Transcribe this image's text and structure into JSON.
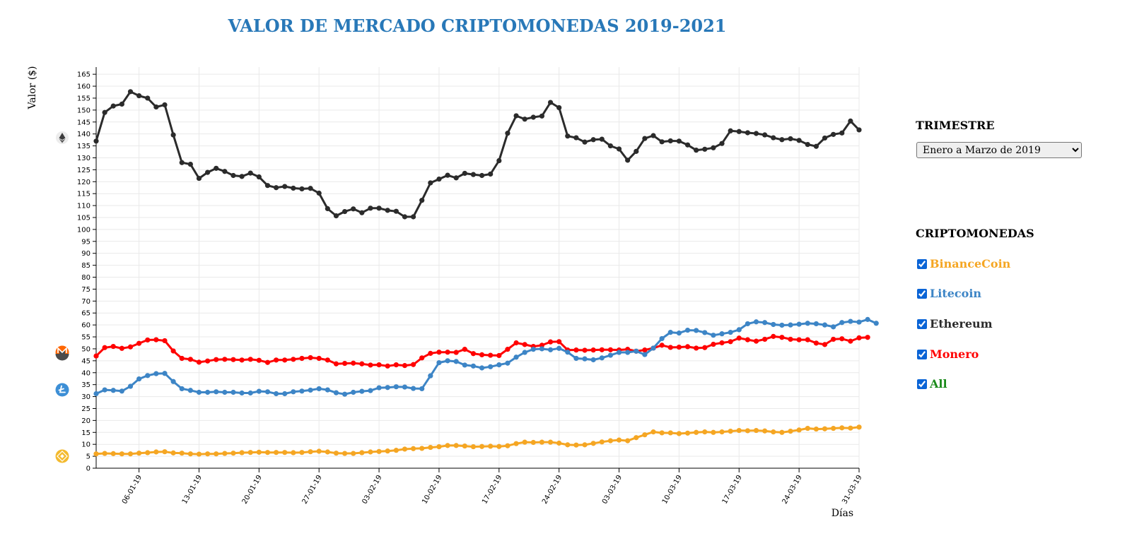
{
  "title": "VALOR DE MERCADO CRIPTOMONEDAS 2019-2021",
  "quarter_panel": {
    "heading": "TRIMESTRE",
    "selected": "Enero a Marzo de 2019"
  },
  "coins_panel": {
    "heading": "CRIPTOMONEDAS",
    "items": [
      {
        "label": "BinanceCoin",
        "color": "#f5a623",
        "checked": true
      },
      {
        "label": "Litecoin",
        "color": "#3d85c6",
        "checked": true
      },
      {
        "label": "Ethereum",
        "color": "#2b2b2b",
        "checked": true
      },
      {
        "label": "Monero",
        "color": "#ff0000",
        "checked": true
      },
      {
        "label": "All",
        "color": "#1a8a1a",
        "checked": true
      }
    ]
  },
  "icons": [
    "ethereum-icon",
    "monero-icon",
    "litecoin-icon",
    "binancecoin-icon"
  ],
  "chart_data": {
    "type": "line",
    "title": "VALOR DE MERCADO CRIPTOMONEDAS 2019-2021",
    "xlabel": "Días",
    "ylabel": "Valor ($)",
    "ylim": [
      0,
      165
    ],
    "y_ticks": [
      0,
      5,
      10,
      15,
      20,
      25,
      30,
      35,
      40,
      45,
      50,
      55,
      60,
      65,
      70,
      75,
      80,
      85,
      90,
      95,
      100,
      105,
      110,
      115,
      120,
      125,
      130,
      135,
      140,
      145,
      150,
      155,
      160,
      165
    ],
    "x_tick_labels": [
      "06-01-19",
      "13-01-19",
      "20-01-19",
      "27-01-19",
      "03-02-19",
      "10-02-19",
      "17-02-19",
      "24-02-19",
      "03-03-19",
      "10-03-19",
      "17-03-19",
      "24-03-19",
      "31-03-19"
    ],
    "grid": true,
    "series": [
      {
        "name": "Ethereum",
        "color": "#2b2b2b",
        "values": [
          137.0,
          149.0,
          151.7,
          152.5,
          157.7,
          156.0,
          155.0,
          151.3,
          152.2,
          139.6,
          128.0,
          127.3,
          121.4,
          123.9,
          125.6,
          124.3,
          122.6,
          122.2,
          123.6,
          122.0,
          118.4,
          117.5,
          118.0,
          117.3,
          117.0,
          117.2,
          115.2,
          108.7,
          105.7,
          107.5,
          108.6,
          107.0,
          108.9,
          108.9,
          108.0,
          107.6,
          105.3,
          105.3,
          112.2,
          119.5,
          121.1,
          122.7,
          121.6,
          123.5,
          123.0,
          122.6,
          123.2,
          128.8,
          140.3,
          147.6,
          146.2,
          147.0,
          147.5,
          153.2,
          151.0,
          139.1,
          138.4,
          136.6,
          137.6,
          137.8,
          135.0,
          133.7,
          129.0,
          132.7,
          138.1,
          139.3,
          136.7,
          137.1,
          137.0,
          135.4,
          133.2,
          133.6,
          134.2,
          136.0,
          141.3,
          141.0,
          140.5,
          140.2,
          139.6,
          138.4,
          137.6,
          138.0,
          137.3,
          135.6,
          134.8,
          138.3,
          139.8,
          140.4,
          145.4,
          141.7
        ]
      },
      {
        "name": "Monero",
        "color": "#ff0000",
        "values": [
          47.0,
          50.5,
          51.0,
          50.2,
          50.8,
          52.3,
          53.7,
          53.8,
          53.4,
          49.1,
          46.0,
          45.6,
          44.4,
          44.9,
          45.5,
          45.6,
          45.5,
          45.3,
          45.6,
          45.2,
          44.3,
          45.3,
          45.3,
          45.6,
          46.0,
          46.3,
          46.0,
          45.3,
          43.7,
          43.9,
          44.0,
          43.7,
          43.2,
          43.3,
          42.8,
          43.3,
          43.0,
          43.4,
          46.2,
          48.1,
          48.6,
          48.6,
          48.5,
          49.8,
          48.0,
          47.5,
          47.3,
          47.2,
          49.8,
          52.5,
          51.8,
          51.0,
          51.5,
          52.9,
          53.0,
          49.5,
          49.5,
          49.4,
          49.5,
          49.6,
          49.6,
          49.5,
          49.8,
          49.0,
          49.5,
          50.3,
          51.5,
          50.6,
          50.7,
          50.9,
          50.3,
          50.5,
          51.9,
          52.5,
          53.0,
          54.5,
          53.8,
          53.2,
          54.0,
          55.2,
          54.8,
          54.0,
          53.8,
          53.8,
          52.4,
          51.8,
          54.0,
          54.2,
          53.2,
          54.6,
          54.8
        ]
      },
      {
        "name": "Litecoin",
        "color": "#3d85c6",
        "values": [
          31.2,
          32.8,
          32.6,
          32.3,
          34.3,
          37.4,
          38.8,
          39.6,
          39.7,
          36.3,
          33.3,
          32.6,
          31.8,
          31.8,
          32.0,
          31.8,
          31.8,
          31.5,
          31.5,
          32.2,
          32.0,
          31.2,
          31.2,
          32.0,
          32.3,
          32.7,
          33.3,
          32.8,
          31.6,
          31.0,
          31.8,
          32.2,
          32.5,
          33.7,
          33.8,
          34.1,
          34.0,
          33.4,
          33.3,
          38.7,
          44.2,
          45.0,
          44.7,
          43.2,
          42.8,
          42.0,
          42.5,
          43.3,
          44.0,
          46.5,
          48.5,
          49.8,
          50.0,
          49.6,
          50.2,
          48.6,
          46.0,
          45.8,
          45.4,
          46.2,
          47.3,
          48.5,
          48.5,
          49.0,
          47.6,
          50.3,
          54.3,
          56.9,
          56.6,
          57.8,
          57.7,
          56.8,
          55.7,
          56.3,
          56.9,
          58.0,
          60.5,
          61.3,
          61.0,
          60.2,
          59.9,
          60.0,
          60.3,
          60.7,
          60.5,
          60.0,
          59.2,
          61.0,
          61.5,
          61.2,
          62.3,
          60.7
        ]
      },
      {
        "name": "BinanceCoin",
        "color": "#f5a623",
        "values": [
          6.0,
          6.2,
          6.1,
          6.0,
          6.0,
          6.3,
          6.5,
          6.8,
          6.9,
          6.4,
          6.3,
          6.0,
          5.9,
          6.0,
          6.0,
          6.2,
          6.3,
          6.5,
          6.6,
          6.7,
          6.6,
          6.6,
          6.6,
          6.5,
          6.6,
          6.9,
          7.1,
          6.8,
          6.3,
          6.2,
          6.2,
          6.5,
          6.8,
          7.0,
          7.2,
          7.5,
          8.0,
          8.2,
          8.3,
          8.7,
          9.0,
          9.5,
          9.5,
          9.3,
          9.0,
          9.1,
          9.2,
          9.1,
          9.4,
          10.3,
          10.9,
          10.8,
          10.9,
          10.9,
          10.5,
          9.8,
          9.7,
          9.8,
          10.4,
          11.0,
          11.5,
          11.8,
          11.5,
          12.8,
          14.0,
          15.2,
          14.8,
          14.8,
          14.5,
          14.7,
          15.0,
          15.2,
          15.0,
          15.2,
          15.5,
          15.8,
          15.7,
          15.8,
          15.6,
          15.2,
          15.0,
          15.5,
          16.0,
          16.7,
          16.4,
          16.5,
          16.7,
          16.9,
          16.8,
          17.2
        ]
      }
    ]
  }
}
